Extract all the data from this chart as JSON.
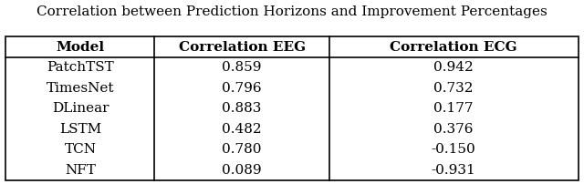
{
  "title": "Correlation between Prediction Horizons and Improvement Percentages",
  "columns": [
    "Model",
    "Correlation EEG",
    "Correlation ECG"
  ],
  "rows": [
    [
      "PatchTST",
      "0.859",
      "0.942"
    ],
    [
      "TimesNet",
      "0.796",
      "0.732"
    ],
    [
      "DLinear",
      "0.883",
      "0.177"
    ],
    [
      "LSTM",
      "0.482",
      "0.376"
    ],
    [
      "TCN",
      "0.780",
      "-0.150"
    ],
    [
      "NFT",
      "0.089",
      "-0.931"
    ]
  ],
  "background_color": "#ffffff",
  "title_fontsize": 11,
  "header_fontsize": 11,
  "cell_fontsize": 11,
  "col_bounds": [
    0.0,
    0.26,
    0.565,
    1.0
  ],
  "line_width": 1.2
}
